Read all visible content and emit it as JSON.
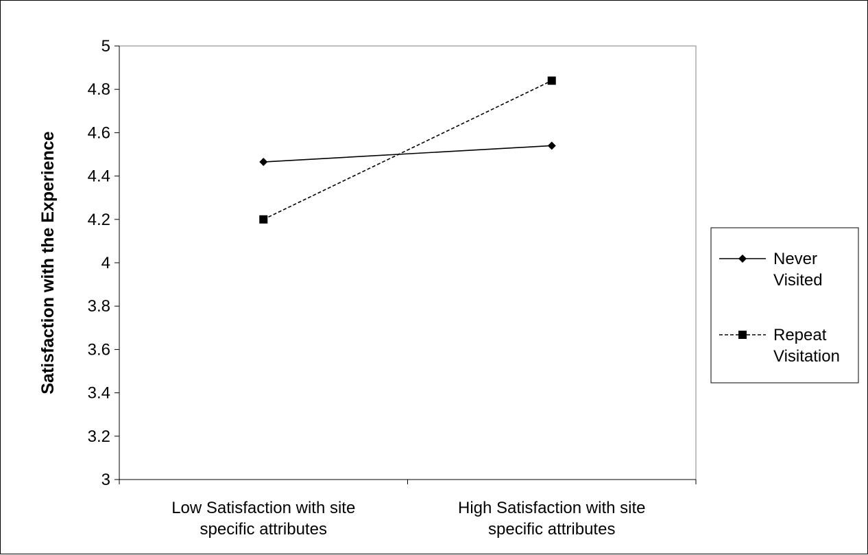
{
  "chart_data": {
    "type": "line",
    "title": "",
    "xlabel": "",
    "ylabel": "Satisfaction with the Experience",
    "categories": [
      [
        "Low  Satisfaction with site",
        "specific attributes"
      ],
      [
        "High  Satisfaction with site",
        "specific attributes"
      ]
    ],
    "ylim": [
      3,
      5
    ],
    "yticks": [
      "3",
      "3.2",
      "3.4",
      "3.6",
      "3.8",
      "4",
      "4.2",
      "4.4",
      "4.6",
      "4.8",
      "5"
    ],
    "grid": false,
    "legend_position": "right",
    "series": [
      {
        "name": [
          "Never",
          "Visited"
        ],
        "values": [
          4.465,
          4.54
        ],
        "line_style": "solid",
        "marker": "diamond",
        "color": "#000000"
      },
      {
        "name": [
          "Repeat",
          "Visitation"
        ],
        "values": [
          4.2,
          4.84
        ],
        "line_style": "dashed",
        "marker": "square",
        "color": "#000000"
      }
    ]
  }
}
